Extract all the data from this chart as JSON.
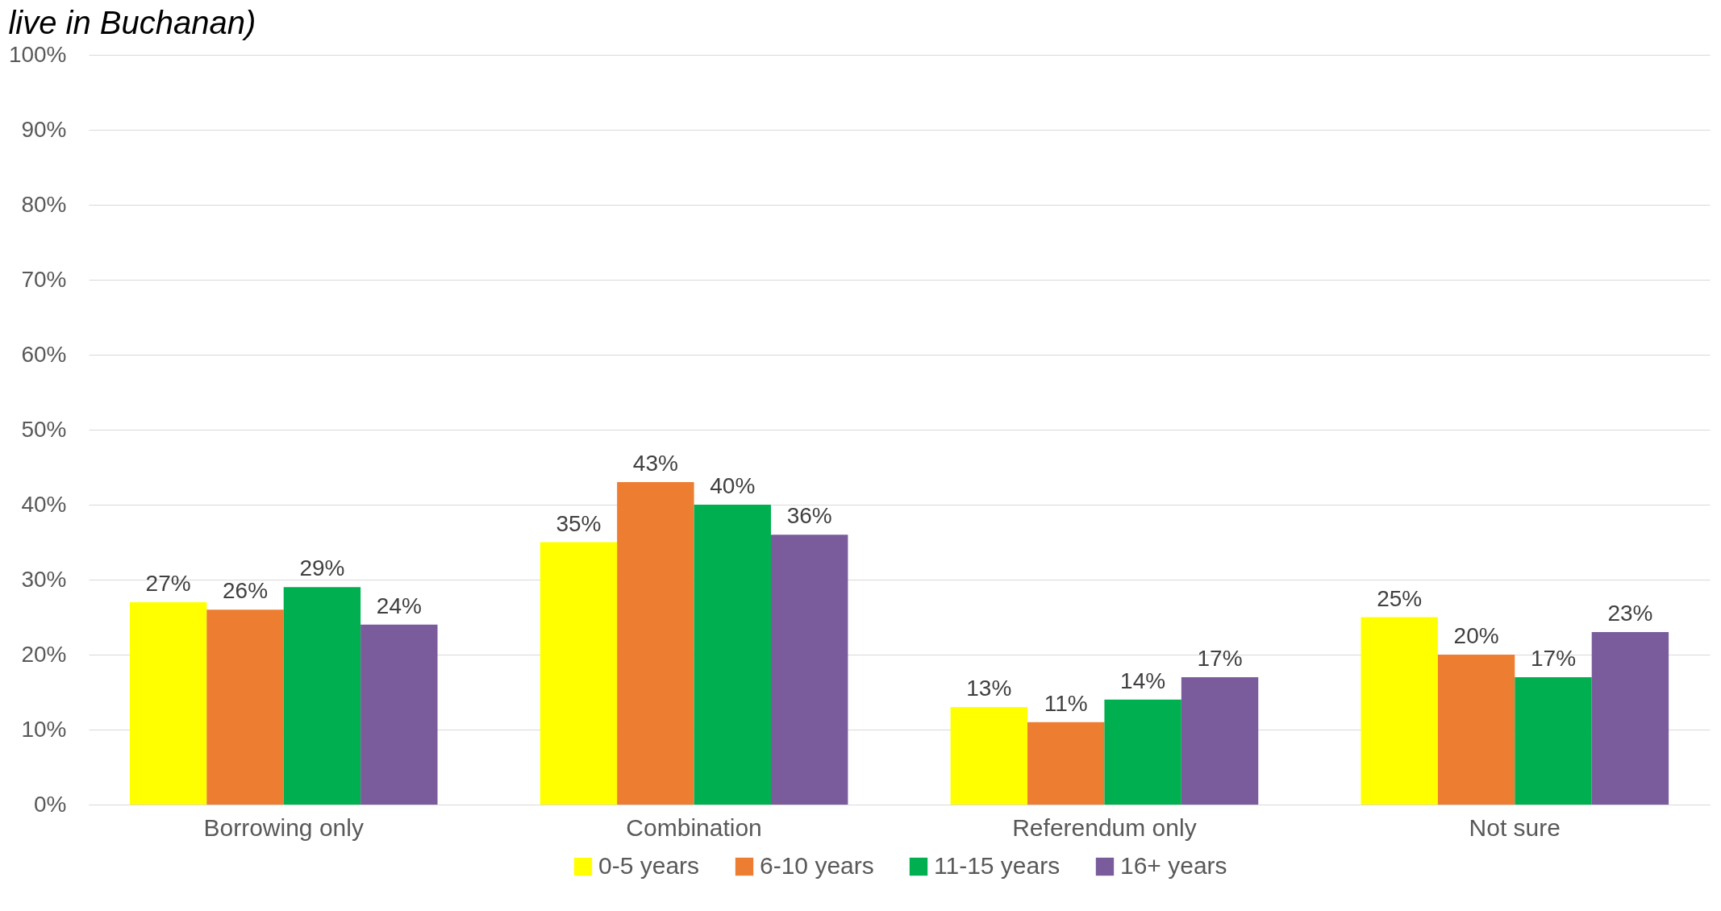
{
  "chart_data": {
    "type": "bar",
    "title": "live in Buchanan)",
    "categories": [
      "Borrowing only",
      "Combination",
      "Referendum only",
      "Not sure"
    ],
    "series": [
      {
        "name": "0-5 years",
        "color": "#ffff00",
        "values": [
          27,
          35,
          13,
          25
        ],
        "value_labels": [
          "27%",
          "35%",
          "13%",
          "25%"
        ]
      },
      {
        "name": "6-10 years",
        "color": "#ed7d31",
        "values": [
          26,
          43,
          11,
          20
        ],
        "value_labels": [
          "26%",
          "43%",
          "11%",
          "20%"
        ]
      },
      {
        "name": "11-15 years",
        "color": "#00b050",
        "values": [
          29,
          40,
          14,
          17
        ],
        "value_labels": [
          "29%",
          "40%",
          "14%",
          "17%"
        ]
      },
      {
        "name": "16+ years",
        "color": "#7a5c9c",
        "values": [
          24,
          36,
          17,
          23
        ],
        "value_labels": [
          "24%",
          "36%",
          "17%",
          "23%"
        ]
      }
    ],
    "ylim": [
      0,
      100
    ],
    "yticks": [
      {
        "value": 0,
        "label": "0%"
      },
      {
        "value": 10,
        "label": "10%"
      },
      {
        "value": 20,
        "label": "20%"
      },
      {
        "value": 30,
        "label": "30%"
      },
      {
        "value": 40,
        "label": "40%"
      },
      {
        "value": 50,
        "label": "50%"
      },
      {
        "value": 60,
        "label": "60%"
      },
      {
        "value": 70,
        "label": "70%"
      },
      {
        "value": 80,
        "label": "80%"
      },
      {
        "value": 90,
        "label": "90%"
      },
      {
        "value": 100,
        "label": "100%"
      }
    ],
    "grid": "y",
    "legend": "bottom"
  }
}
